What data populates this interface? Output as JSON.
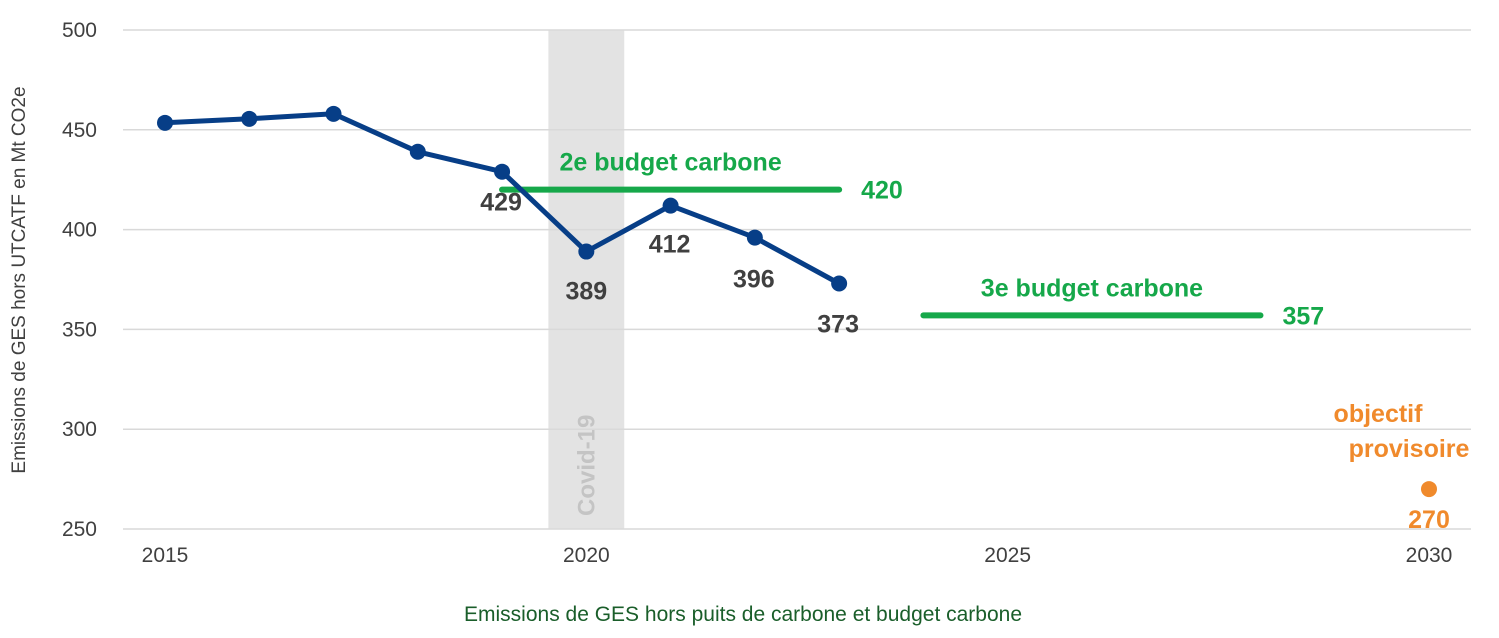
{
  "colors": {
    "series": "#073e87",
    "budget": "#16a84a",
    "objective": "#f08a2c",
    "label": "#404040",
    "grid": "#d9d9d9",
    "covid_band": "#e3e3e3",
    "covid_text": "#c4c4c4",
    "subtitle": "#1a5e2a"
  },
  "chart_data": {
    "type": "line",
    "title": "",
    "subtitle": "Emissions de GES hors puits de carbone et budget carbone",
    "xlabel": "",
    "ylabel": "Emissions de GES  hors UTCATF en Mt CO2e",
    "xlim": [
      2015,
      2030
    ],
    "ylim": [
      250,
      500
    ],
    "x_ticks": [
      "2015",
      "2020",
      "2025",
      "2030"
    ],
    "y_ticks": [
      "250",
      "300",
      "350",
      "400",
      "450",
      "500"
    ],
    "grid": true,
    "legend": "none",
    "series": [
      {
        "name": "Emissions de GES hors UTCATF",
        "points": [
          {
            "x": 2015,
            "y": 453.5
          },
          {
            "x": 2016,
            "y": 455.5
          },
          {
            "x": 2017,
            "y": 458
          },
          {
            "x": 2018,
            "y": 439
          },
          {
            "x": 2019,
            "y": 429,
            "label": "429"
          },
          {
            "x": 2020,
            "y": 389,
            "label": "389"
          },
          {
            "x": 2021,
            "y": 412,
            "label": "412"
          },
          {
            "x": 2022,
            "y": 396,
            "label": "396"
          },
          {
            "x": 2023,
            "y": 373,
            "label": "373"
          }
        ]
      }
    ],
    "budgets": [
      {
        "name": "2e budget carbone",
        "x_start": 2019,
        "x_end": 2023,
        "value": 420,
        "value_label": "420"
      },
      {
        "name": "3e budget carbone",
        "x_start": 2024,
        "x_end": 2028,
        "value": 357,
        "value_label": "357"
      }
    ],
    "objective": {
      "label_line1": "objectif",
      "label_line2": "provisoire",
      "x": 2030,
      "value": 270,
      "value_label": "270"
    },
    "annotations": [
      {
        "text": "Covid-19",
        "x_start": 2019.55,
        "x_end": 2020.45
      }
    ]
  }
}
